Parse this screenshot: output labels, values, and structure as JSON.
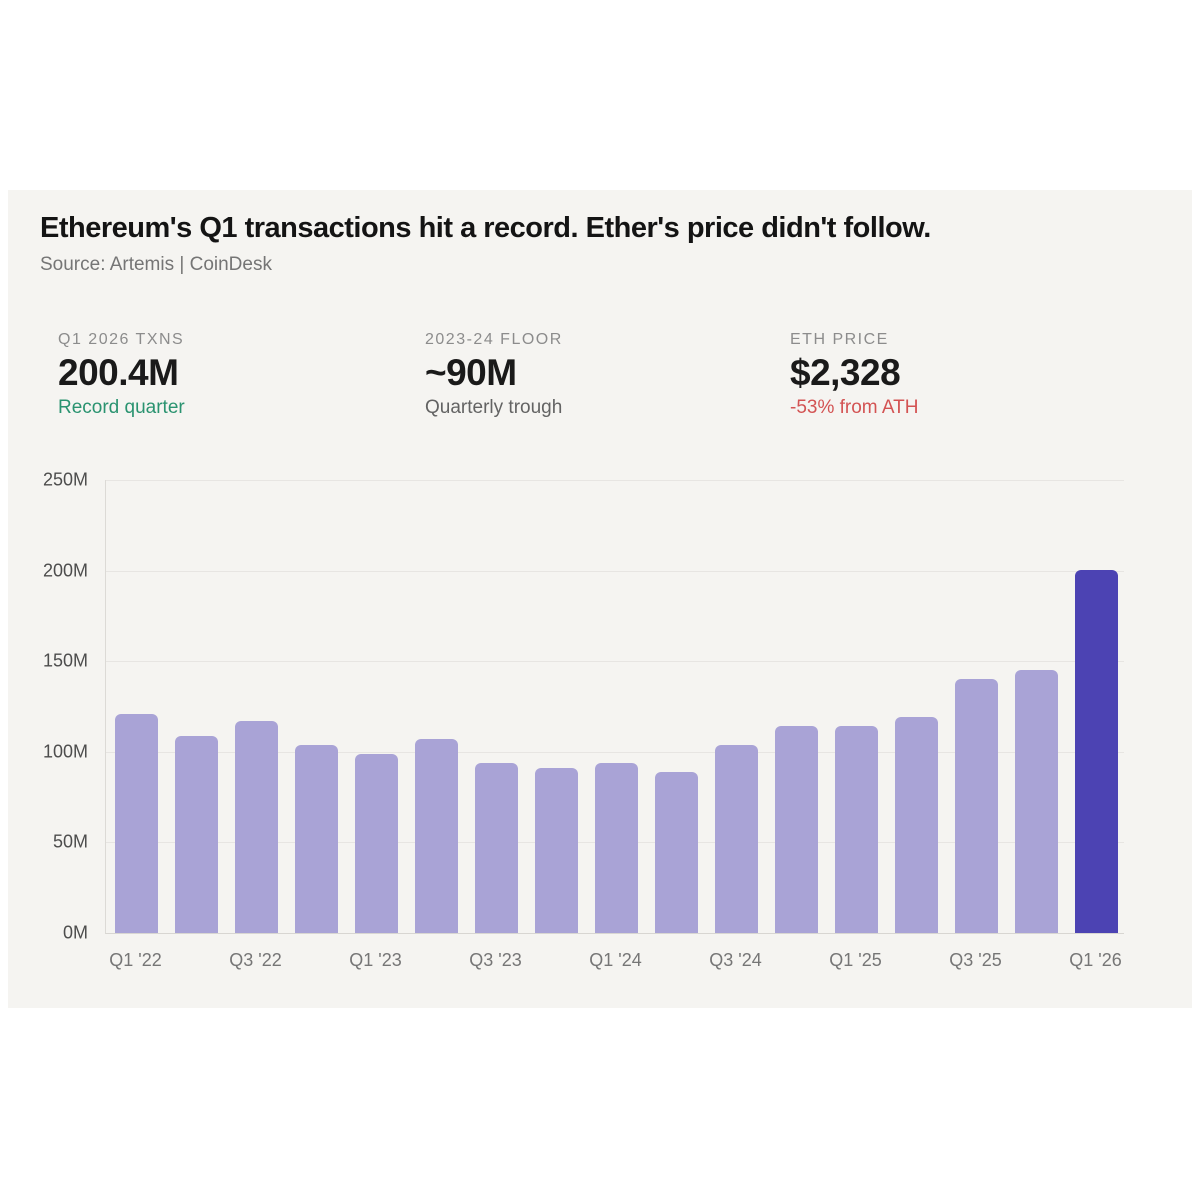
{
  "header": {
    "title": "Ethereum's Q1 transactions hit a record. Ether's price didn't follow.",
    "source": "Source: Artemis | CoinDesk"
  },
  "stats": [
    {
      "label": "Q1 2026 TXNS",
      "value": "200.4M",
      "note": "Record quarter",
      "note_color": "#2a9370"
    },
    {
      "label": "2023-24 FLOOR",
      "value": "~90M",
      "note": "Quarterly trough",
      "note_color": "#636363"
    },
    {
      "label": "ETH PRICE",
      "value": "$2,328",
      "note": "-53% from ATH",
      "note_color": "#d35353"
    }
  ],
  "chart_data": {
    "type": "bar",
    "title": "Ethereum's Q1 transactions hit a record. Ether's price didn't follow.",
    "xlabel": "",
    "ylabel": "",
    "categories": [
      "Q1 '22",
      "Q2 '22",
      "Q3 '22",
      "Q4 '22",
      "Q1 '23",
      "Q2 '23",
      "Q3 '23",
      "Q4 '23",
      "Q1 '24",
      "Q2 '24",
      "Q3 '24",
      "Q4 '24",
      "Q1 '25",
      "Q2 '25",
      "Q3 '25",
      "Q4 '25",
      "Q1 '26"
    ],
    "values": [
      121,
      109,
      117,
      104,
      99,
      107,
      94,
      91,
      94,
      89,
      104,
      114,
      114,
      119,
      140,
      145,
      200.4
    ],
    "value_unit": "M",
    "x_tick_labels": [
      "Q1 '22",
      "Q3 '22",
      "Q1 '23",
      "Q3 '23",
      "Q1 '24",
      "Q3 '24",
      "Q1 '25",
      "Q3 '25",
      "Q1 '26"
    ],
    "x_label_every": 2,
    "y_tick_labels": [
      "250M",
      "200M",
      "150M",
      "100M",
      "50M",
      "0M"
    ],
    "ylim": [
      0,
      250
    ],
    "grid": true,
    "legend": false,
    "bar_color": "#a9a3d6",
    "highlight_color": "#4c43b3",
    "highlight_index": 16,
    "background_color": "#f5f4f1"
  }
}
